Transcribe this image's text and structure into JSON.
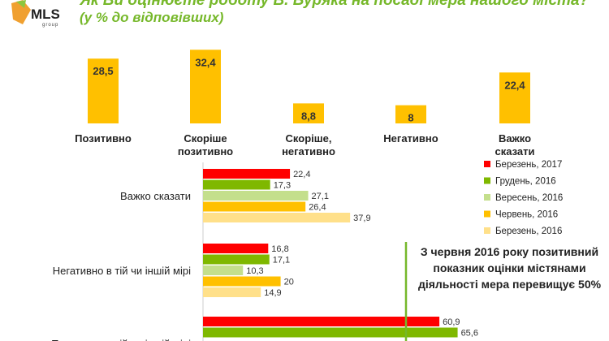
{
  "header": {
    "title": "Як Ви оцінюєте роботу В. Буряка на посаді мера нашого міста?",
    "subtitle": "(у % до відповівших)",
    "logo_text": "MLS",
    "logo_sub": "group"
  },
  "note": "З червня 2016 року позитивний показник оцінки містянами діяльності мера перевищує 50%",
  "colors": {
    "title": "#76b82a",
    "bar_top": "#ffc000"
  },
  "chart_data": [
    {
      "type": "bar",
      "title": "",
      "categories": [
        "Позитивно",
        "Скоріше позитивно",
        "Скоріше, негативно",
        "Негативно",
        "Важко сказати"
      ],
      "values": [
        28.5,
        32.4,
        8.8,
        8,
        22.4
      ],
      "value_labels": [
        "28,5",
        "32,4",
        "8,8",
        "8",
        "22,4"
      ],
      "ylim": [
        0,
        40
      ]
    },
    {
      "type": "bar",
      "orientation": "horizontal",
      "categories": [
        "Важко сказати",
        "Негативно в тій чи іншій мірі",
        "Позитивно в тій чи іншій мірі"
      ],
      "series": [
        {
          "name": "Березень, 2017",
          "color": "#ff0000",
          "values": [
            22.4,
            16.8,
            60.9
          ],
          "labels": [
            "22,4",
            "16,8",
            "60,9"
          ]
        },
        {
          "name": "Грудень, 2016",
          "color": "#7fb800",
          "values": [
            17.3,
            17.1,
            65.6
          ],
          "labels": [
            "17,3",
            "17,1",
            "65,6"
          ]
        },
        {
          "name": "Вересень, 2016",
          "color": "#c4df8c",
          "values": [
            27.1,
            10.3,
            null
          ],
          "labels": [
            "27,1",
            "10,3",
            ""
          ]
        },
        {
          "name": "Червень, 2016",
          "color": "#ffc000",
          "values": [
            26.4,
            20,
            null
          ],
          "labels": [
            "26,4",
            "20",
            ""
          ]
        },
        {
          "name": "Березень, 2016",
          "color": "#ffe08a",
          "values": [
            37.9,
            14.9,
            null
          ],
          "labels": [
            "37,9",
            "14,9",
            ""
          ]
        }
      ],
      "reference_line": 50,
      "legend": "right"
    }
  ]
}
